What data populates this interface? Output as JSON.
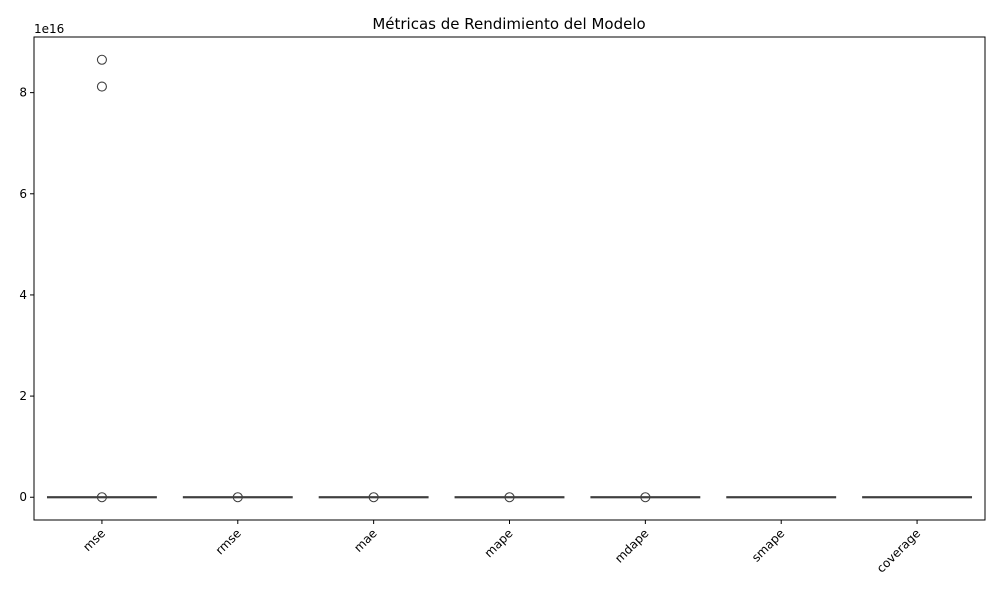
{
  "chart_data": {
    "type": "box",
    "title": "Métricas de Rendimiento del Modelo",
    "xlabel": "",
    "ylabel": "",
    "y_offset_label": "1e16",
    "y_scale": 1e+16,
    "ylim": [
      -0.45,
      9.1
    ],
    "y_ticks": [
      0,
      2,
      4,
      6,
      8
    ],
    "y_tick_labels": [
      "0",
      "2",
      "4",
      "6",
      "8"
    ],
    "categories": [
      "mse",
      "rmse",
      "mae",
      "mape",
      "mdape",
      "smape",
      "coverage"
    ],
    "boxes": [
      {
        "category": "mse",
        "min": 0,
        "q1": 0,
        "median": 0,
        "q3": 0,
        "max": 0,
        "outliers": [
          8.65,
          8.12,
          0
        ]
      },
      {
        "category": "rmse",
        "min": 0,
        "q1": 0,
        "median": 0,
        "q3": 0,
        "max": 0,
        "outliers": [
          0
        ]
      },
      {
        "category": "mae",
        "min": 0,
        "q1": 0,
        "median": 0,
        "q3": 0,
        "max": 0,
        "outliers": [
          0
        ]
      },
      {
        "category": "mape",
        "min": 0,
        "q1": 0,
        "median": 0,
        "q3": 0,
        "max": 0,
        "outliers": [
          0
        ]
      },
      {
        "category": "mdape",
        "min": 0,
        "q1": 0,
        "median": 0,
        "q3": 0,
        "max": 0,
        "outliers": [
          0
        ]
      },
      {
        "category": "smape",
        "min": 0,
        "q1": 0,
        "median": 0,
        "q3": 0,
        "max": 0,
        "outliers": []
      },
      {
        "category": "coverage",
        "min": 0,
        "q1": 0,
        "median": 0,
        "q3": 0,
        "max": 0,
        "outliers": []
      }
    ],
    "x_tick_rotation": 45,
    "grid": false,
    "legend": "none",
    "colors": {
      "box_edge": "#3f3f3f",
      "axis": "#000000",
      "outlier_edge": "#3f3f3f"
    }
  }
}
